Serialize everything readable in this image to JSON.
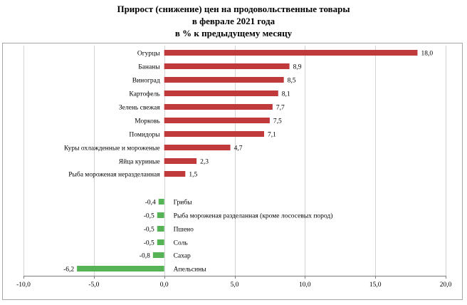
{
  "chart_data": {
    "type": "bar",
    "orientation": "horizontal",
    "title": [
      "Прирост  (снижение)  цен на продовольственные  товары",
      "в феврале  2021 года",
      "в % к предыдущему  месяцу"
    ],
    "xlim": [
      -10,
      20
    ],
    "xticks": [
      "-10,0",
      "-5,0",
      "0,0",
      "5,0",
      "10,0",
      "15,0",
      "20,0"
    ],
    "grid": true,
    "legend": "none",
    "colors": {
      "increase": "#c0393b",
      "decrease": "#56b356",
      "grid": "#d4d4d4",
      "axis": "#808080",
      "frame": "#a6a6a6"
    },
    "categories": [
      "Огурцы",
      "Бананы",
      "Виноград",
      "Картофель",
      "Зелень свежая",
      "Морковь",
      "Помидоры",
      "Куры охлажденные и мороженые",
      "Яйца куриные",
      "Рыба мороженая неразделанная",
      "Грибы",
      "Рыба мороженая разделанная (кроме лососевых пород)",
      "Пшено",
      "Соль",
      "Сахар",
      "Апельсины"
    ],
    "values": [
      18.0,
      8.9,
      8.5,
      8.1,
      7.7,
      7.5,
      7.1,
      4.7,
      2.3,
      1.5,
      -0.4,
      -0.5,
      -0.5,
      -0.5,
      -0.8,
      -6.2
    ],
    "value_labels": [
      "18,0",
      "8,9",
      "8,5",
      "8,1",
      "7,7",
      "7,5",
      "7,1",
      "4,7",
      "2,3",
      "1,5",
      "-0,4",
      "-0,5",
      "-0,5",
      "-0,5",
      "-0,8",
      "-6,2"
    ]
  }
}
